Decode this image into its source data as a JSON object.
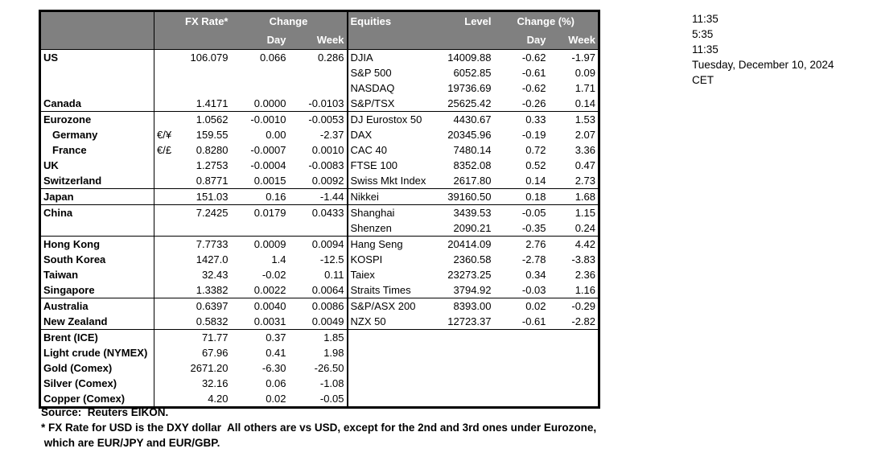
{
  "colors": {
    "header_bg": "#808080",
    "header_text": "#ffffff",
    "border": "#000000",
    "body_text": "#000000",
    "background": "#ffffff"
  },
  "table": {
    "header": {
      "fx_rate": "FX Rate*",
      "change": "Change",
      "day": "Day",
      "week": "Week",
      "equities": "Equities",
      "level": "Level",
      "change_pct": "Change (%)"
    },
    "rows": [
      {
        "country": "US",
        "sym": "",
        "fx": "106.079",
        "day": "0.066",
        "week": "0.286",
        "equity": "DJIA",
        "level": "14009.88",
        "eday": "-0.62",
        "eweek": "-1.97",
        "sep": false,
        "indent": false
      },
      {
        "country": "",
        "sym": "",
        "fx": "",
        "day": "",
        "week": "",
        "equity": "S&P 500",
        "level": "6052.85",
        "eday": "-0.61",
        "eweek": "0.09",
        "sep": false,
        "indent": false
      },
      {
        "country": "",
        "sym": "",
        "fx": "",
        "day": "",
        "week": "",
        "equity": "NASDAQ",
        "level": "19736.69",
        "eday": "-0.62",
        "eweek": "1.71",
        "sep": false,
        "indent": false
      },
      {
        "country": "Canada",
        "sym": "",
        "fx": "1.4171",
        "day": "0.0000",
        "week": "-0.0103",
        "equity": "S&P/TSX",
        "level": "25625.42",
        "eday": "-0.26",
        "eweek": "0.14",
        "sep": true,
        "indent": false
      },
      {
        "country": "Eurozone",
        "sym": "",
        "fx": "1.0562",
        "day": "-0.0010",
        "week": "-0.0053",
        "equity": "DJ Eurostox 50",
        "level": "4430.67",
        "eday": "0.33",
        "eweek": "1.53",
        "sep": false,
        "indent": false
      },
      {
        "country": "Germany",
        "sym": "€/¥",
        "fx": "159.55",
        "day": "0.00",
        "week": "-2.37",
        "equity": "DAX",
        "level": "20345.96",
        "eday": "-0.19",
        "eweek": "2.07",
        "sep": false,
        "indent": true
      },
      {
        "country": "France",
        "sym": "€/£",
        "fx": "0.8280",
        "day": "-0.0007",
        "week": "0.0010",
        "equity": "CAC 40",
        "level": "7480.14",
        "eday": "0.72",
        "eweek": "3.36",
        "sep": false,
        "indent": true
      },
      {
        "country": "UK",
        "sym": "",
        "fx": "1.2753",
        "day": "-0.0004",
        "week": "-0.0083",
        "equity": "FTSE 100",
        "level": "8352.08",
        "eday": "0.52",
        "eweek": "0.47",
        "sep": false,
        "indent": false
      },
      {
        "country": "Switzerland",
        "sym": "",
        "fx": "0.8771",
        "day": "0.0015",
        "week": "0.0092",
        "equity": "Swiss Mkt Index",
        "level": "2617.80",
        "eday": "0.14",
        "eweek": "2.73",
        "sep": true,
        "indent": false
      },
      {
        "country": "Japan",
        "sym": "",
        "fx": "151.03",
        "day": "0.16",
        "week": "-1.44",
        "equity": "Nikkei",
        "level": "39160.50",
        "eday": "0.18",
        "eweek": "1.68",
        "sep": true,
        "indent": false
      },
      {
        "country": "China",
        "sym": "",
        "fx": "7.2425",
        "day": "0.0179",
        "week": "0.0433",
        "equity": "Shanghai",
        "level": "3439.53",
        "eday": "-0.05",
        "eweek": "1.15",
        "sep": false,
        "indent": false
      },
      {
        "country": "",
        "sym": "",
        "fx": "",
        "day": "",
        "week": "",
        "equity": "Shenzen",
        "level": "2090.21",
        "eday": "-0.35",
        "eweek": "0.24",
        "sep": true,
        "indent": false
      },
      {
        "country": "Hong Kong",
        "sym": "",
        "fx": "7.7733",
        "day": "0.0009",
        "week": "0.0094",
        "equity": "Hang Seng",
        "level": "20414.09",
        "eday": "2.76",
        "eweek": "4.42",
        "sep": false,
        "indent": false
      },
      {
        "country": "South Korea",
        "sym": "",
        "fx": "1427.0",
        "day": "1.4",
        "week": "-12.5",
        "equity": "KOSPI",
        "level": "2360.58",
        "eday": "-2.78",
        "eweek": "-3.83",
        "sep": false,
        "indent": false
      },
      {
        "country": "Taiwan",
        "sym": "",
        "fx": "32.43",
        "day": "-0.02",
        "week": "0.11",
        "equity": "Taiex",
        "level": "23273.25",
        "eday": "0.34",
        "eweek": "2.36",
        "sep": false,
        "indent": false
      },
      {
        "country": "Singapore",
        "sym": "",
        "fx": "1.3382",
        "day": "0.0022",
        "week": "0.0064",
        "equity": "Straits Times",
        "level": "3794.92",
        "eday": "-0.03",
        "eweek": "1.16",
        "sep": true,
        "indent": false
      },
      {
        "country": "Australia",
        "sym": "",
        "fx": "0.6397",
        "day": "0.0040",
        "week": "0.0086",
        "equity": "S&P/ASX  200",
        "level": "8393.00",
        "eday": "0.02",
        "eweek": "-0.29",
        "sep": false,
        "indent": false
      },
      {
        "country": "New Zealand",
        "sym": "",
        "fx": "0.5832",
        "day": "0.0031",
        "week": "0.0049",
        "equity": "NZX 50",
        "level": "12723.37",
        "eday": "-0.61",
        "eweek": "-2.82",
        "sep": true,
        "indent": false
      },
      {
        "country": "Brent (ICE)",
        "sym": "",
        "fx": "71.77",
        "day": "0.37",
        "week": "1.85",
        "equity": "",
        "level": "",
        "eday": "",
        "eweek": "",
        "sep": false,
        "indent": false
      },
      {
        "country": "Light crude (NYMEX)",
        "sym": "",
        "fx": "67.96",
        "day": "0.41",
        "week": "1.98",
        "equity": "",
        "level": "",
        "eday": "",
        "eweek": "",
        "sep": false,
        "indent": false
      },
      {
        "country": "Gold (Comex)",
        "sym": "",
        "fx": "2671.20",
        "day": "-6.30",
        "week": "-26.50",
        "equity": "",
        "level": "",
        "eday": "",
        "eweek": "",
        "sep": false,
        "indent": false
      },
      {
        "country": "Silver (Comex)",
        "sym": "",
        "fx": "32.16",
        "day": "0.06",
        "week": "-1.08",
        "equity": "",
        "level": "",
        "eday": "",
        "eweek": "",
        "sep": false,
        "indent": false
      },
      {
        "country": "Copper (Comex)",
        "sym": "",
        "fx": "4.20",
        "day": "0.02",
        "week": "-0.05",
        "equity": "",
        "level": "",
        "eday": "",
        "eweek": "",
        "sep": false,
        "indent": false
      }
    ]
  },
  "timestamps": {
    "lines": [
      "11:35",
      "5:35",
      "11:35",
      "Tuesday, December 10, 2024",
      "CET"
    ]
  },
  "footnotes": {
    "lines": [
      "Source:  Reuters EIKON.",
      "* FX Rate for USD is the DXY dollar  All others are vs USD, except for the 2nd and 3rd ones under Eurozone,",
      " which are EUR/JPY and EUR/GBP."
    ]
  }
}
